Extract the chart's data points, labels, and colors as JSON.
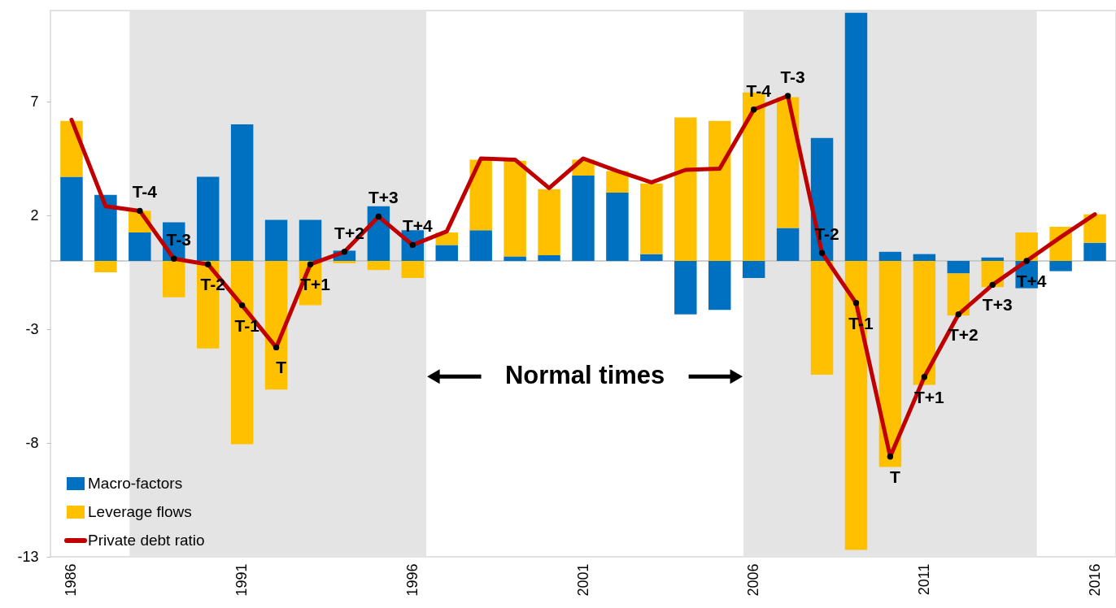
{
  "chart_data": {
    "type": "bar",
    "stacked": true,
    "x": [
      1986,
      1987,
      1988,
      1989,
      1990,
      1991,
      1992,
      1993,
      1994,
      1995,
      1996,
      1997,
      1998,
      1999,
      2000,
      2001,
      2002,
      2003,
      2004,
      2005,
      2006,
      2007,
      2008,
      2009,
      2010,
      2011,
      2012,
      2013,
      2014,
      2015,
      2016
    ],
    "xlim": [
      1985.5,
      2016.5
    ],
    "xticks": [
      1986,
      1991,
      1996,
      2001,
      2006,
      2011,
      2016
    ],
    "ylim": [
      -13,
      11
    ],
    "yticks": [
      -13,
      -8,
      -3,
      2,
      7
    ],
    "series": [
      {
        "name": "Macro-factors",
        "color": "#0070c0",
        "values": [
          3.7,
          2.9,
          1.25,
          1.7,
          3.7,
          6.0,
          1.8,
          1.8,
          0.45,
          2.4,
          1.35,
          0.7,
          1.35,
          0.2,
          0.25,
          3.75,
          3.0,
          0.3,
          -2.35,
          -2.15,
          -0.75,
          1.45,
          5.4,
          10.9,
          0.4,
          0.3,
          -0.55,
          0.15,
          -1.2,
          -0.45,
          0.8
        ]
      },
      {
        "name": "Leverage flows",
        "color": "#ffc000",
        "values": [
          2.45,
          -0.5,
          0.95,
          -1.6,
          -3.85,
          -8.05,
          -5.65,
          -1.95,
          -0.1,
          -0.4,
          -0.75,
          0.55,
          3.1,
          4.2,
          2.9,
          0.7,
          0.95,
          3.1,
          6.3,
          6.15,
          7.4,
          5.75,
          -5.0,
          -12.7,
          -9.05,
          -5.45,
          -1.85,
          -1.15,
          1.25,
          1.5,
          1.25
        ]
      },
      {
        "name": "Private debt ratio",
        "type": "line",
        "color": "#c00000",
        "values": [
          6.2,
          2.4,
          2.2,
          0.1,
          -0.15,
          -1.95,
          -3.8,
          -0.15,
          0.4,
          1.95,
          0.7,
          1.3,
          4.5,
          4.45,
          3.2,
          4.5,
          3.95,
          3.45,
          4.0,
          4.05,
          6.65,
          7.25,
          0.35,
          -1.85,
          -8.6,
          -5.1,
          -2.35,
          -1.05,
          0.0,
          1.05,
          2.05
        ]
      },
      {
        "type": "scatter",
        "color": "#000000",
        "x": [
          1988,
          1989,
          1990,
          1991,
          1992,
          1993,
          1994,
          1995,
          1996,
          2006,
          2007,
          2008,
          2009,
          2010,
          2011,
          2012,
          2013,
          2014
        ],
        "values": [
          2.2,
          0.1,
          -0.15,
          -1.95,
          -3.8,
          -0.15,
          0.4,
          1.95,
          0.7,
          6.65,
          7.25,
          0.35,
          -1.85,
          -8.6,
          -5.1,
          -2.35,
          -1.05,
          0.0
        ]
      }
    ],
    "ref_lines": [
      {
        "axis": "y",
        "value": 0,
        "color": "#bfbfbf"
      }
    ],
    "bands": [
      {
        "axis": "x",
        "from": 1987.7,
        "to": 1996.4,
        "color": "#e4e4e4"
      },
      {
        "axis": "x",
        "from": 2005.7,
        "to": 2014.3,
        "color": "#e4e4e4"
      }
    ],
    "annotations": [
      {
        "text": "T-4",
        "x": 1988,
        "y": 2.2
      },
      {
        "text": "T-3",
        "x": 1989,
        "y": 0.1
      },
      {
        "text": "T-2",
        "x": 1990,
        "y": -0.15
      },
      {
        "text": "T-1",
        "x": 1991,
        "y": -1.95
      },
      {
        "text": "T",
        "x": 1992,
        "y": -3.8
      },
      {
        "text": "T+1",
        "x": 1993,
        "y": -0.15
      },
      {
        "text": "T+2",
        "x": 1994,
        "y": 0.4
      },
      {
        "text": "T+3",
        "x": 1995,
        "y": 1.95
      },
      {
        "text": "T+4",
        "x": 1996,
        "y": 0.7
      },
      "Normal times",
      {
        "text": "T-4",
        "x": 2006,
        "y": 6.65
      },
      {
        "text": "T-3",
        "x": 2007,
        "y": 7.25
      },
      {
        "text": "T-2",
        "x": 2008,
        "y": 0.35
      },
      {
        "text": "T-1",
        "x": 2009,
        "y": -1.85
      },
      {
        "text": "T",
        "x": 2010,
        "y": -8.6
      },
      {
        "text": "T+1",
        "x": 2011,
        "y": -5.1
      },
      {
        "text": "T+2",
        "x": 2012,
        "y": -2.35
      },
      {
        "text": "T+3",
        "x": 2013,
        "y": -1.05
      },
      {
        "text": "T+4",
        "x": 2014,
        "y": 0.0
      }
    ],
    "legend": "bottom left"
  }
}
